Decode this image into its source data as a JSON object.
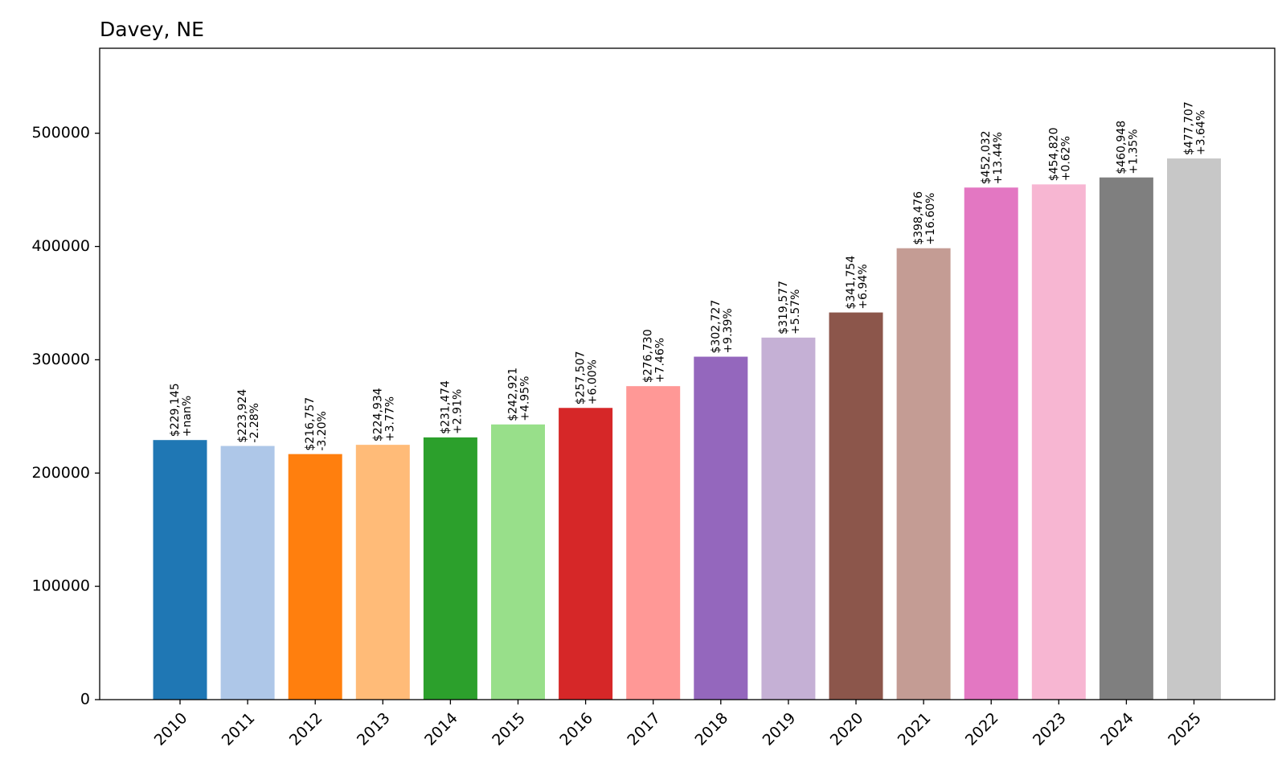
{
  "chart_data": {
    "type": "bar",
    "title": "Davey, NE",
    "xlabel": "",
    "ylabel": "",
    "categories": [
      "2010",
      "2011",
      "2012",
      "2013",
      "2014",
      "2015",
      "2016",
      "2017",
      "2018",
      "2019",
      "2020",
      "2021",
      "2022",
      "2023",
      "2024",
      "2025"
    ],
    "values": [
      229145,
      223924,
      216757,
      224934,
      231474,
      242921,
      257507,
      276730,
      302727,
      319577,
      341754,
      398476,
      452032,
      454820,
      460948,
      477707
    ],
    "value_labels": [
      "$229,145",
      "$223,924",
      "$216,757",
      "$224,934",
      "$231,474",
      "$242,921",
      "$257,507",
      "$276,730",
      "$302,727",
      "$319,577",
      "$341,754",
      "$398,476",
      "$452,032",
      "$454,820",
      "$460,948",
      "$477,707"
    ],
    "change_labels": [
      "+nan%",
      "-2.28%",
      "-3.20%",
      "+3.77%",
      "+2.91%",
      "+4.95%",
      "+6.00%",
      "+7.46%",
      "+9.39%",
      "+5.57%",
      "+6.94%",
      "+16.60%",
      "+13.44%",
      "+0.62%",
      "+1.35%",
      "+3.64%"
    ],
    "colors": [
      "#1f77b4",
      "#aec7e8",
      "#ff7f0e",
      "#ffbb78",
      "#2ca02c",
      "#98df8a",
      "#d62728",
      "#ff9896",
      "#9467bd",
      "#c5b0d5",
      "#8c564b",
      "#c49c94",
      "#e377c2",
      "#f7b6d2",
      "#7f7f7f",
      "#c7c7c7"
    ],
    "ylim": [
      0,
      575000
    ],
    "yticks": [
      0,
      100000,
      200000,
      300000,
      400000,
      500000
    ],
    "ytick_labels": [
      "0",
      "100000",
      "200000",
      "300000",
      "400000",
      "500000"
    ],
    "grid": false,
    "legend": "none"
  }
}
